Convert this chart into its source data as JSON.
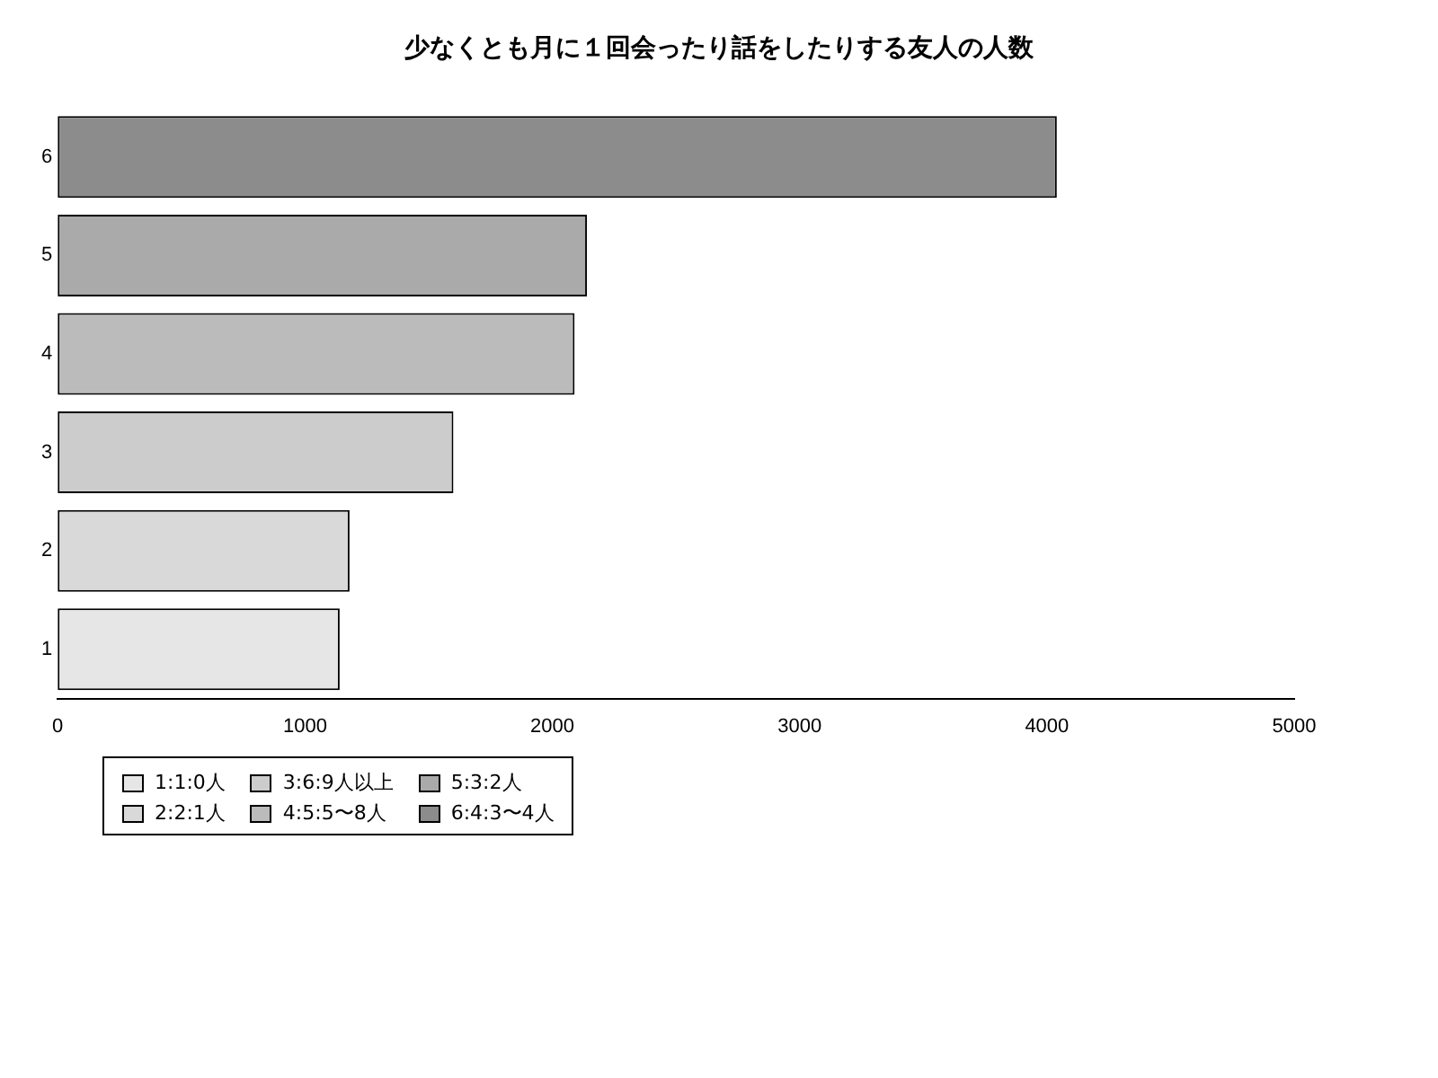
{
  "chart_data": {
    "type": "bar",
    "orientation": "horizontal",
    "stacked": true,
    "title": "少なくとも月に１回会ったり話をしたりする友人の人数",
    "categories": [
      "6",
      "5",
      "4",
      "3",
      "2",
      "1"
    ],
    "series": [
      {
        "name": "1:1:0人",
        "color": "#e6e6e6",
        "values": [
          null,
          null,
          null,
          null,
          null,
          1140
        ]
      },
      {
        "name": "2:2:1人",
        "color": "#d9d9d9",
        "values": [
          null,
          null,
          null,
          null,
          1180,
          null
        ]
      },
      {
        "name": "3:6:9人以上",
        "color": "#cccccc",
        "values": [
          null,
          null,
          null,
          1600,
          null,
          null
        ]
      },
      {
        "name": "4:5:5〜8人",
        "color": "#bbbbbb",
        "values": [
          null,
          null,
          2090,
          null,
          null,
          null
        ]
      },
      {
        "name": "5:3:2人",
        "color": "#aaaaaa",
        "values": [
          null,
          2140,
          null,
          null,
          null,
          null
        ]
      },
      {
        "name": "6:4:3〜4人",
        "color": "#8c8c8c",
        "values": [
          4040,
          null,
          null,
          null,
          null,
          null
        ]
      }
    ],
    "xlim": [
      0,
      5000
    ],
    "xticks": [
      0,
      1000,
      2000,
      3000,
      4000,
      5000
    ],
    "grid": false,
    "legend": "bottom left"
  }
}
